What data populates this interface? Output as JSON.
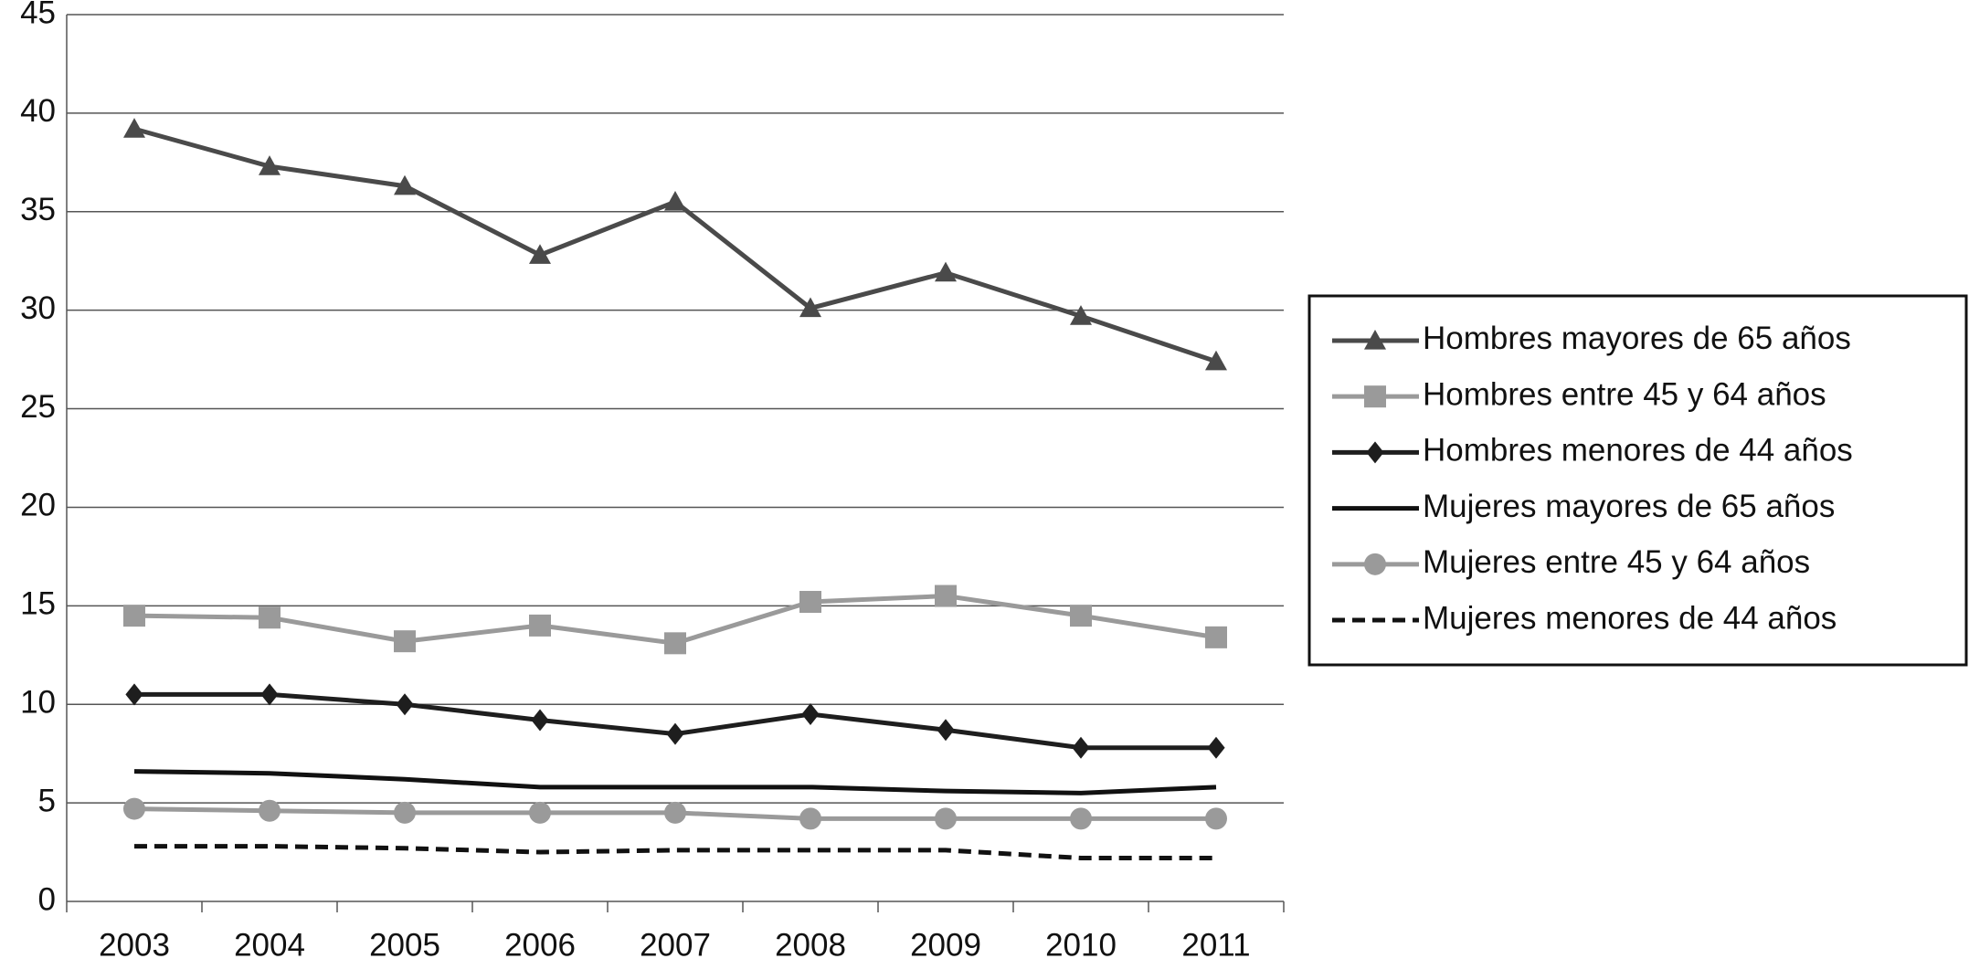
{
  "chart_data": {
    "type": "line",
    "categories": [
      "2003",
      "2004",
      "2005",
      "2006",
      "2007",
      "2008",
      "2009",
      "2010",
      "2011"
    ],
    "series": [
      {
        "name": "Hombres mayores de 65 años",
        "color": "#4a4a4a",
        "marker": "triangle",
        "dash": false,
        "values": [
          39.2,
          37.3,
          36.3,
          32.8,
          35.5,
          30.1,
          31.9,
          29.7,
          27.4
        ]
      },
      {
        "name": "Hombres entre 45 y 64 años",
        "color": "#9a9a9a",
        "marker": "square",
        "dash": false,
        "values": [
          14.5,
          14.4,
          13.2,
          14.0,
          13.1,
          15.2,
          15.5,
          14.5,
          13.4
        ]
      },
      {
        "name": "Hombres menores de 44 años",
        "color": "#1e1e1e",
        "marker": "diamond",
        "dash": false,
        "values": [
          10.5,
          10.5,
          10.0,
          9.2,
          8.5,
          9.5,
          8.7,
          7.8,
          7.8
        ]
      },
      {
        "name": "Mujeres mayores de 65 años",
        "color": "#111111",
        "marker": "none",
        "dash": false,
        "values": [
          6.6,
          6.5,
          6.2,
          5.8,
          5.8,
          5.8,
          5.6,
          5.5,
          5.8
        ]
      },
      {
        "name": "Mujeres entre 45 y 64 años",
        "color": "#9a9a9a",
        "marker": "circle",
        "dash": false,
        "values": [
          4.7,
          4.6,
          4.5,
          4.5,
          4.5,
          4.2,
          4.2,
          4.2,
          4.2
        ]
      },
      {
        "name": "Mujeres menores de 44 años",
        "color": "#111111",
        "marker": "none",
        "dash": true,
        "values": [
          2.8,
          2.8,
          2.7,
          2.5,
          2.6,
          2.6,
          2.6,
          2.2,
          2.2
        ]
      }
    ],
    "ylim": [
      0,
      45
    ],
    "yticks": [
      0,
      5,
      10,
      15,
      20,
      25,
      30,
      35,
      40,
      45
    ],
    "grid": true,
    "legend": "right"
  }
}
